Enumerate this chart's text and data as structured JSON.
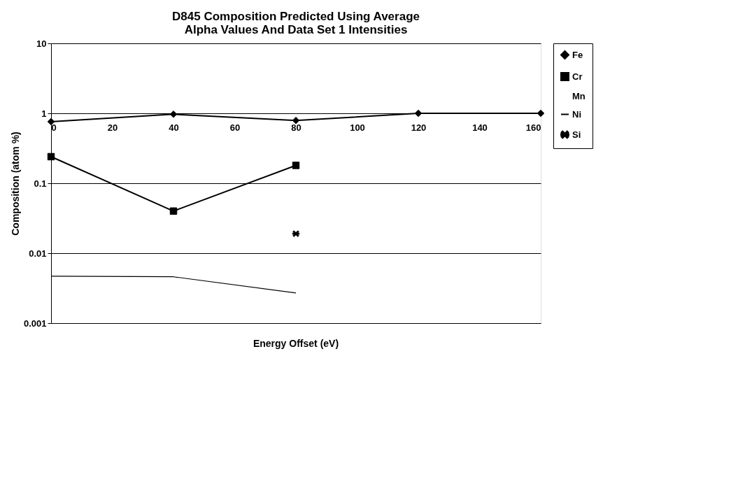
{
  "chart_data": {
    "type": "line",
    "title": [
      "D845 Composition Predicted Using Average",
      "Alpha Values And Data Set 1 Intensities"
    ],
    "xlabel": "Energy Offset (eV)",
    "ylabel": "Composition (atom %)",
    "log": "y",
    "grid": "y",
    "legend": "right",
    "x": [
      0,
      40,
      80,
      120,
      160
    ],
    "xlim": [
      0,
      160
    ],
    "xticks": [
      0,
      20,
      40,
      60,
      80,
      100,
      120,
      140,
      160
    ],
    "ylim": [
      0.001,
      10
    ],
    "yticks": [
      0.001,
      0.01,
      0.1,
      1,
      10
    ],
    "series": [
      {
        "name": "Fe",
        "color": "#000000",
        "marker": "diamond",
        "values": [
          0.76,
          0.97,
          0.79,
          1.0,
          1.0
        ]
      },
      {
        "name": "Cr",
        "color": "#000000",
        "marker": "square",
        "x": [
          0,
          40,
          80
        ],
        "values": [
          0.24,
          0.04,
          0.18
        ]
      },
      {
        "name": "Mn",
        "marker": "none",
        "values": [
          null,
          null,
          null,
          null,
          null
        ]
      },
      {
        "name": "Ni",
        "color": "#000000",
        "marker": "none",
        "x": [
          0,
          40,
          80
        ],
        "values": [
          0.0047,
          0.0046,
          0.0027
        ]
      },
      {
        "name": "Si",
        "color": "#000000",
        "marker": "cross",
        "x": [
          80
        ],
        "values": [
          0.019
        ]
      }
    ]
  }
}
